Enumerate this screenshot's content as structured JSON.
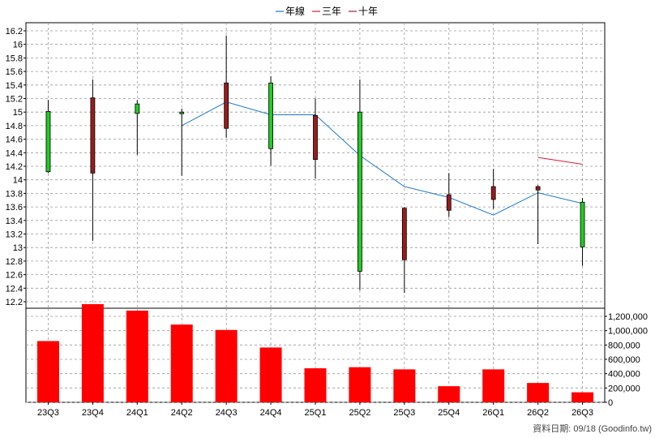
{
  "chart_data": {
    "type": "candlestick",
    "categories": [
      "23Q3",
      "23Q4",
      "24Q1",
      "24Q2",
      "24Q3",
      "24Q4",
      "25Q1",
      "25Q2",
      "25Q3",
      "25Q4",
      "26Q1",
      "26Q2",
      "26Q3"
    ],
    "ohlc": [
      {
        "open": 14.12,
        "high": 15.18,
        "low": 14.1,
        "close": 15.01
      },
      {
        "open": 15.21,
        "high": 15.48,
        "low": 13.1,
        "close": 14.1
      },
      {
        "open": 14.98,
        "high": 15.18,
        "low": 14.37,
        "close": 15.12
      },
      {
        "open": 14.98,
        "high": 15.05,
        "low": 14.06,
        "close": 15.0
      },
      {
        "open": 15.43,
        "high": 16.13,
        "low": 14.62,
        "close": 14.76
      },
      {
        "open": 14.46,
        "high": 15.53,
        "low": 14.21,
        "close": 15.43
      },
      {
        "open": 14.95,
        "high": 15.2,
        "low": 14.02,
        "close": 14.3
      },
      {
        "open": 12.65,
        "high": 15.48,
        "low": 12.37,
        "close": 15.0
      },
      {
        "open": 13.58,
        "high": 13.6,
        "low": 12.33,
        "close": 12.82
      },
      {
        "open": 13.78,
        "high": 14.1,
        "low": 13.45,
        "close": 13.55
      },
      {
        "open": 13.9,
        "high": 14.16,
        "low": 13.57,
        "close": 13.71
      },
      {
        "open": 13.9,
        "high": 13.92,
        "low": 13.05,
        "close": 13.85
      },
      {
        "open": 13.01,
        "high": 13.73,
        "low": 12.73,
        "close": 13.67
      }
    ],
    "series": [
      {
        "name": "年線",
        "color": "#1f78c8",
        "values": [
          null,
          null,
          null,
          14.8,
          15.15,
          14.96,
          14.96,
          14.36,
          13.9,
          13.74,
          13.48,
          13.81,
          13.65
        ]
      },
      {
        "name": "三年",
        "color": "#d81b3c",
        "values": [
          null,
          null,
          null,
          null,
          null,
          null,
          null,
          null,
          null,
          null,
          null,
          14.33,
          14.23
        ]
      },
      {
        "name": "十年",
        "color": "#9b1b5a",
        "values": [
          null,
          null,
          null,
          null,
          null,
          null,
          null,
          null,
          null,
          null,
          null,
          null,
          null
        ]
      }
    ],
    "volume": [
      855000,
      1370000,
      1280000,
      1085000,
      1010000,
      765000,
      475000,
      490000,
      460000,
      225000,
      460000,
      270000,
      140000
    ],
    "price_axis": {
      "min": 12.2,
      "max": 16.2,
      "step": 0.2,
      "ticks": [
        "12.2",
        "12.4",
        "12.6",
        "12.8",
        "13",
        "13.2",
        "13.4",
        "13.6",
        "13.8",
        "14",
        "14.2",
        "14.4",
        "14.6",
        "14.8",
        "15",
        "15.2",
        "15.4",
        "15.6",
        "15.8",
        "16",
        "16.2"
      ]
    },
    "volume_axis": {
      "min": 0,
      "max": 1200000,
      "ticks": [
        "0",
        "200,000",
        "400,000",
        "600,000",
        "800,000",
        "1,000,000",
        "1,200,000"
      ]
    },
    "up_color": "#9b1b1b",
    "down_color": "#22cc22",
    "volume_color": "#ff0000",
    "grid": true,
    "legend_position": "top-center"
  },
  "footer": "資料日期: 09/18  (Goodinfo.tw)"
}
